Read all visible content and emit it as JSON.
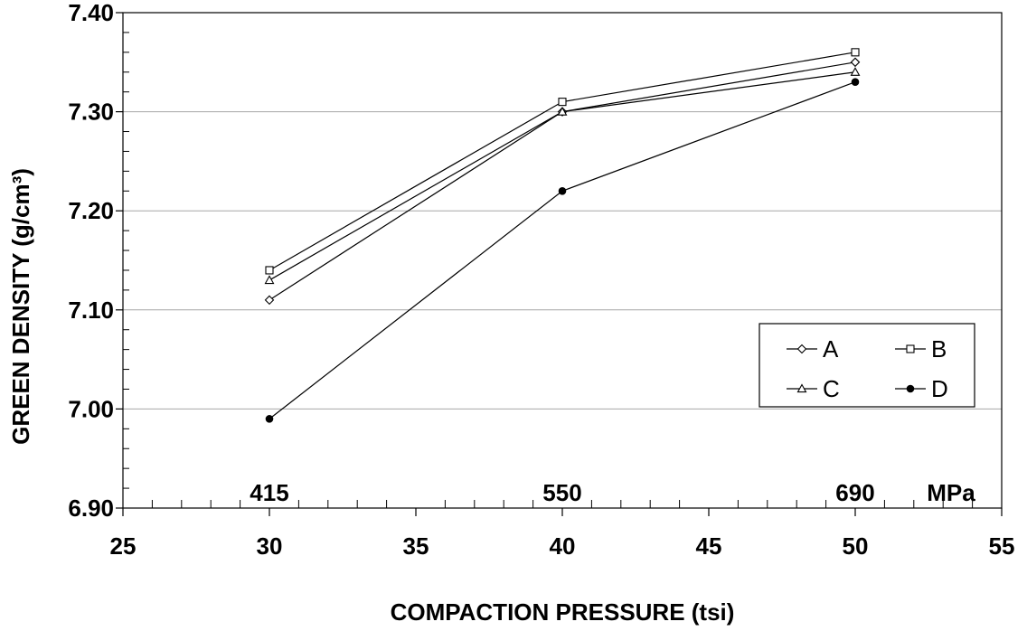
{
  "chart_data": {
    "type": "line",
    "title": "",
    "xlabel": "COMPACTION PRESSURE (tsi)",
    "ylabel": "GREEN DENSITY (g/cm³)",
    "xlim": [
      25,
      55
    ],
    "ylim": [
      6.9,
      7.4
    ],
    "x_ticks": [
      "25",
      "30",
      "35",
      "40",
      "45",
      "50",
      "55"
    ],
    "y_ticks": [
      "6.90",
      "7.00",
      "7.10",
      "7.20",
      "7.30",
      "7.40"
    ],
    "x_minor_step": 1,
    "y_minor_step": 0.02,
    "grid": "horizontal major",
    "secondary_axis_labels": [
      {
        "x": 30,
        "text": "415"
      },
      {
        "x": 40,
        "text": "550"
      },
      {
        "x": 50,
        "text": "690"
      }
    ],
    "secondary_axis_unit": "MPa",
    "legend_position": "bottom-right",
    "x": [
      30,
      40,
      50
    ],
    "series": [
      {
        "name": "A",
        "values": [
          7.11,
          7.3,
          7.35
        ],
        "marker": "diamond-open"
      },
      {
        "name": "B",
        "values": [
          7.14,
          7.31,
          7.36
        ],
        "marker": "square-open"
      },
      {
        "name": "C",
        "values": [
          7.13,
          7.3,
          7.34
        ],
        "marker": "triangle-open"
      },
      {
        "name": "D",
        "values": [
          6.99,
          7.22,
          7.33
        ],
        "marker": "circle-filled"
      }
    ]
  }
}
